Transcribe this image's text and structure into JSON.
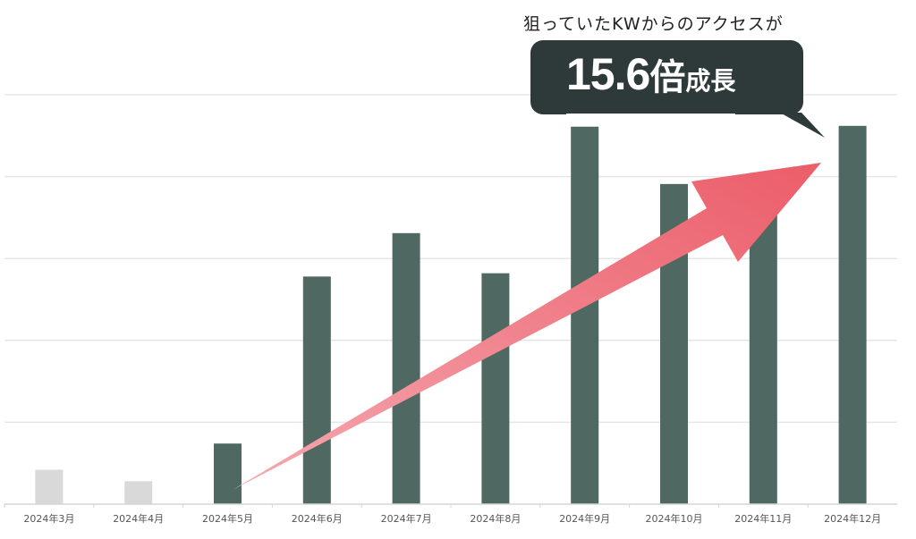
{
  "annotation": {
    "subtitle": "狙っていたKWからのアクセスが",
    "number": "15.6",
    "unit": "倍",
    "suffix": "成長"
  },
  "colors": {
    "bar_highlight": "#4f6962",
    "bar_muted": "#d9d9d9",
    "callout_bg": "#2e3a39",
    "arrow_start": "#f5a8b0",
    "arrow_end": "#eb5d69",
    "grid": "#e6e6e6"
  },
  "chart_data": {
    "type": "bar",
    "title": "",
    "xlabel": "",
    "ylabel": "",
    "categories": [
      "2024年3月",
      "2024年4月",
      "2024年5月",
      "2024年6月",
      "2024年7月",
      "2024年8月",
      "2024年9月",
      "2024年10月",
      "2024年11月",
      "2024年12月"
    ],
    "values": [
      0.42,
      0.28,
      0.74,
      2.78,
      3.31,
      2.82,
      4.61,
      3.91,
      3.6,
      4.62
    ],
    "muted": [
      true,
      true,
      false,
      false,
      false,
      false,
      false,
      false,
      false,
      false
    ],
    "ylim": [
      0,
      5
    ],
    "yticks_count": 5,
    "grid": true,
    "y_tick_labels_shown": false
  }
}
